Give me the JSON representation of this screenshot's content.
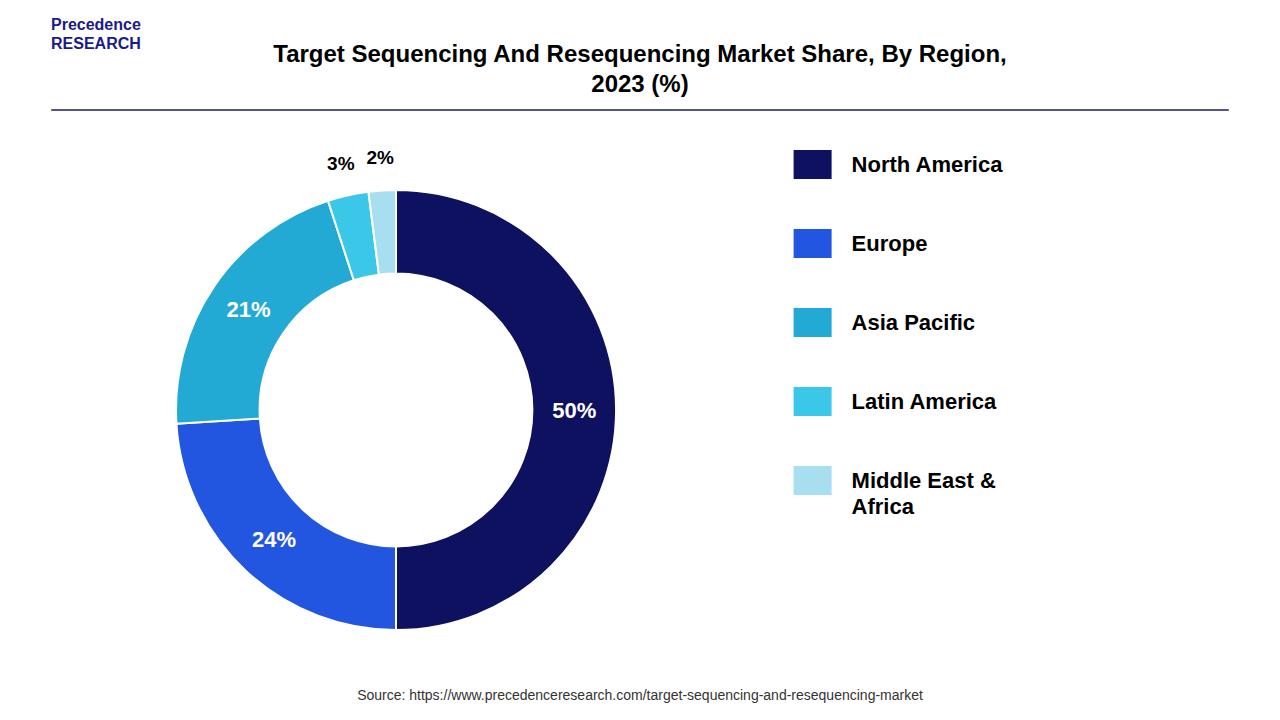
{
  "chart_data": {
    "type": "donut",
    "title": "Target Sequencing And Resequencing Market Share, By Region,\n2023 (%)",
    "categories": [
      "North America",
      "Europe",
      "Asia Pacific",
      "Latin America",
      "Middle East &\nAfrica"
    ],
    "values": [
      50,
      24,
      21,
      3,
      2
    ],
    "value_labels": [
      "50%",
      "24%",
      "21%",
      "3%",
      "2%"
    ],
    "colors": [
      "#0d1160",
      "#2255e0",
      "#22aad4",
      "#3bc8e8",
      "#a8dff0"
    ],
    "data_labels": true,
    "legend": "right",
    "annotations": [
      "Precedence\nRESEARCH",
      "Source: https://www.precedenceresearch.com/target-sequencing-and-resequencing-market"
    ]
  }
}
